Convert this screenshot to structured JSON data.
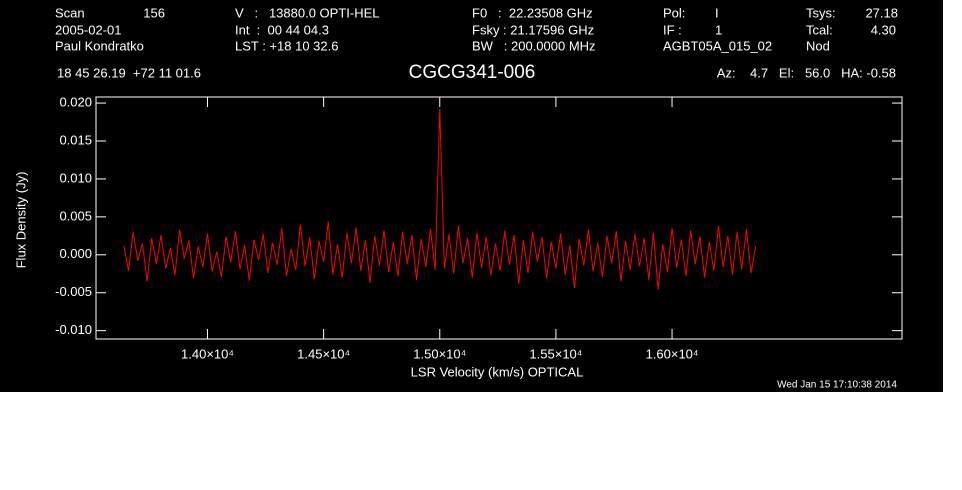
{
  "chart_data": {
    "type": "line",
    "title": "CGCG341-006",
    "header": [
      "Scan",
      "156",
      "2005-02-01",
      "Paul Kondratko",
      "V   :   13880.0 OPTI-HEL",
      "Int  :  00 44 04.3",
      "LST : +18 10 32.6",
      "F0   :  22.23508 GHz",
      "Fsky : 21.17596 GHz",
      "BW   : 200.0000 MHz",
      "Pol:",
      "I",
      "IF :",
      "1",
      "AGBT05A_015_02",
      "Tsys:",
      "27.18",
      "Tcal:",
      "4.30",
      "Nod",
      "18 45 26.19  +72 11 01.6",
      "Az:    4.7   El:   56.0   HA: -0.58"
    ],
    "date": "Wed Jan 15 17:10:38 2014",
    "x_label": "LSR Velocity (km/s) OPTICAL",
    "y_label": "Flux Density (Jy)",
    "color": "#ff0000",
    "x": [
      13640,
      13660,
      13680,
      13700,
      13720,
      13740,
      13760,
      13780,
      13800,
      13820,
      13840,
      13860,
      13880,
      13900,
      13920,
      13940,
      13960,
      13980,
      14000,
      14020,
      14040,
      14060,
      14080,
      14100,
      14120,
      14140,
      14160,
      14180,
      14200,
      14220,
      14240,
      14260,
      14280,
      14300,
      14320,
      14340,
      14360,
      14380,
      14400,
      14420,
      14440,
      14460,
      14480,
      14500,
      14520,
      14540,
      14560,
      14580,
      14600,
      14620,
      14640,
      14660,
      14680,
      14700,
      14720,
      14740,
      14760,
      14780,
      14800,
      14820,
      14840,
      14860,
      14880,
      14900,
      14920,
      14940,
      14960,
      14980,
      15000,
      15020,
      15040,
      15060,
      15080,
      15100,
      15120,
      15140,
      15160,
      15180,
      15200,
      15220,
      15240,
      15260,
      15280,
      15300,
      15320,
      15340,
      15360,
      15380,
      15400,
      15420,
      15440,
      15460,
      15480,
      15500,
      15520,
      15540,
      15560,
      15580,
      15600,
      15620,
      15640,
      15660,
      15680,
      15700,
      15720,
      15740,
      15760,
      15780,
      15800,
      15820,
      15840,
      15860,
      15880,
      15900,
      15920,
      15940,
      15960,
      15980,
      16000,
      16020,
      16040,
      16060,
      16080,
      16100,
      16120,
      16140,
      16160,
      16180,
      16200,
      16220,
      16240,
      16260,
      16280,
      16300,
      16320,
      16340,
      16360
    ],
    "values": [
      0.0012,
      -0.0021,
      0.003,
      -0.0008,
      0.0015,
      -0.0035,
      0.0022,
      -0.0012,
      0.0026,
      -0.0018,
      0.0009,
      -0.0027,
      0.0033,
      -0.0005,
      0.0019,
      -0.0031,
      0.0011,
      -0.0016,
      0.0028,
      -0.0022,
      0.0004,
      -0.0029,
      0.0024,
      -0.001,
      0.0031,
      -0.0019,
      0.0013,
      -0.0034,
      0.002,
      -0.0007,
      0.0027,
      -0.0024,
      0.0016,
      -0.0013,
      0.0035,
      -0.0028,
      0.0008,
      -0.002,
      0.004,
      -0.0015,
      0.0023,
      -0.0032,
      0.0018,
      -0.0009,
      0.0044,
      -0.0026,
      0.0014,
      -0.003,
      0.0029,
      -0.0011,
      0.0036,
      -0.0021,
      0.0019,
      -0.0037,
      0.0025,
      -0.0014,
      0.0032,
      -0.0023,
      0.0017,
      -0.0028,
      0.003,
      -0.0012,
      0.0026,
      -0.0033,
      0.0021,
      -0.0016,
      0.0034,
      -0.002,
      0.0192,
      -0.0018,
      0.0027,
      -0.0025,
      0.0038,
      -0.0011,
      0.0022,
      -0.003,
      0.0029,
      -0.0017,
      0.0024,
      -0.0027,
      0.0015,
      -0.0021,
      0.0032,
      -0.0013,
      0.0026,
      -0.0038,
      0.0019,
      -0.0024,
      0.003,
      -0.0009,
      0.0023,
      -0.0031,
      0.0017,
      -0.0018,
      0.0028,
      -0.0026,
      0.0012,
      -0.0044,
      0.0021,
      -0.0014,
      0.0033,
      -0.0022,
      0.0016,
      -0.0029,
      0.0025,
      -0.0011,
      0.0031,
      -0.0035,
      0.0018,
      -0.002,
      0.0027,
      -0.0015,
      0.0022,
      -0.0033,
      0.0029,
      -0.0046,
      0.0014,
      -0.0023,
      0.0035,
      -0.0017,
      0.002,
      -0.0028,
      0.0032,
      -0.0012,
      0.0024,
      -0.003,
      0.0017,
      -0.0021,
      0.0038,
      -0.0016,
      0.0025,
      -0.0026,
      0.003,
      -0.0019,
      0.0034,
      -0.0024,
      0.0011
    ],
    "xlim": [
      13520,
      16990
    ],
    "ylim": [
      -0.0111,
      0.0208
    ],
    "xticks": [
      {
        "value": 14000,
        "label": "1.40×10⁴"
      },
      {
        "value": 14500,
        "label": "1.45×10⁴"
      },
      {
        "value": 15000,
        "label": "1.50×10⁴"
      },
      {
        "value": 15500,
        "label": "1.55×10⁴"
      },
      {
        "value": 16000,
        "label": "1.60×10⁴"
      }
    ],
    "yticks": [
      {
        "value": -0.01,
        "label": "-0.010"
      },
      {
        "value": -0.005,
        "label": "-0.005"
      },
      {
        "value": 0,
        "label": "0.000"
      },
      {
        "value": 0.005,
        "label": "0.005"
      },
      {
        "value": 0.01,
        "label": "0.010"
      },
      {
        "value": 0.015,
        "label": "0.015"
      },
      {
        "value": 0.02,
        "label": "0.020"
      }
    ]
  }
}
